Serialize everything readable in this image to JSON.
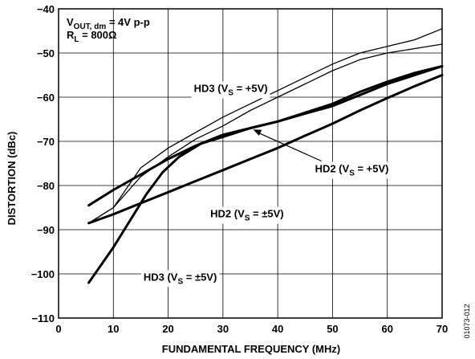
{
  "chart_data": {
    "type": "line",
    "xlabel": "FUNDAMENTAL FREQUENCY (MHz)",
    "ylabel": "DISTORTION (dBc)",
    "xlim": [
      0,
      70
    ],
    "ylim": [
      -110,
      -40
    ],
    "x_ticks": [
      "0",
      "10",
      "20",
      "30",
      "40",
      "50",
      "60",
      "70"
    ],
    "y_ticks": [
      "−40",
      "−50",
      "−60",
      "−70",
      "−80",
      "−90",
      "−100",
      "−110"
    ],
    "grid": true,
    "conditions": {
      "line1_main": "V",
      "line1_sub": "OUT, dm",
      "line1_rest": " = 4V p-p",
      "line2_main": "R",
      "line2_sub": "L",
      "line2_rest": " = 800Ω"
    },
    "series": [
      {
        "name": "HD3 (VS = +5V)",
        "weight": "thin",
        "points": [
          [
            5.5,
            -88.5
          ],
          [
            10,
            -85
          ],
          [
            15,
            -76
          ],
          [
            20,
            -71.5
          ],
          [
            25,
            -68
          ],
          [
            30,
            -64.5
          ],
          [
            35,
            -61.5
          ],
          [
            40,
            -58.5
          ],
          [
            45,
            -55.5
          ],
          [
            50,
            -52.5
          ],
          [
            55,
            -50
          ],
          [
            60,
            -48.5
          ],
          [
            65,
            -47
          ],
          [
            70,
            -44.5
          ]
        ]
      },
      {
        "name": "HD2 (VS = +5V)",
        "weight": "thin",
        "points": [
          [
            5.5,
            -88.5
          ],
          [
            10,
            -85
          ],
          [
            15,
            -78
          ],
          [
            20,
            -73.5
          ],
          [
            25,
            -69.5
          ],
          [
            30,
            -66.5
          ],
          [
            35,
            -63
          ],
          [
            40,
            -60
          ],
          [
            45,
            -57
          ],
          [
            50,
            -54
          ],
          [
            55,
            -51.5
          ],
          [
            60,
            -50
          ],
          [
            65,
            -49
          ],
          [
            70,
            -48
          ]
        ]
      },
      {
        "name": "HD2 (VS = +5V)",
        "weight": "thick",
        "points": [
          [
            5.5,
            -84.5
          ],
          [
            10,
            -81
          ],
          [
            15,
            -77.5
          ],
          [
            20,
            -74
          ],
          [
            25,
            -71
          ],
          [
            30,
            -68.5
          ],
          [
            35,
            -67
          ],
          [
            40,
            -65.5
          ],
          [
            45,
            -63.7
          ],
          [
            50,
            -62
          ],
          [
            55,
            -59.5
          ],
          [
            60,
            -57
          ],
          [
            65,
            -55
          ],
          [
            70,
            -53
          ]
        ]
      },
      {
        "name": "HD2 (VS = ±5V)",
        "weight": "thick",
        "points": [
          [
            5.5,
            -88.5
          ],
          [
            10,
            -86.5
          ],
          [
            15,
            -84
          ],
          [
            20,
            -81.5
          ],
          [
            25,
            -79
          ],
          [
            30,
            -76.5
          ],
          [
            35,
            -74
          ],
          [
            40,
            -71.5
          ],
          [
            45,
            -68.7
          ],
          [
            50,
            -66
          ],
          [
            55,
            -63
          ],
          [
            60,
            -60.2
          ],
          [
            65,
            -57.5
          ],
          [
            70,
            -55
          ]
        ]
      },
      {
        "name": "HD3 (VS = ±5V)",
        "weight": "thick",
        "points": [
          [
            5.5,
            -102
          ],
          [
            10,
            -94
          ],
          [
            13,
            -88
          ],
          [
            16,
            -82
          ],
          [
            19,
            -77
          ],
          [
            22,
            -73.5
          ],
          [
            26,
            -70.5
          ],
          [
            30,
            -69
          ],
          [
            35,
            -67
          ],
          [
            40,
            -65.5
          ],
          [
            45,
            -63.5
          ],
          [
            50,
            -61.5
          ],
          [
            55,
            -58.8
          ],
          [
            60,
            -56.5
          ],
          [
            65,
            -54.5
          ],
          [
            70,
            -53
          ]
        ]
      }
    ],
    "annotations": [
      {
        "id": "hd3_plus",
        "main": "HD3 (V",
        "sub": "S",
        "rest": " = +5V)",
        "x": 24.7,
        "y": -58.8
      },
      {
        "id": "hd2_plus",
        "main": "HD2 (V",
        "sub": "S",
        "rest": " = +5V)",
        "x": 46.8,
        "y": -77.0
      },
      {
        "id": "hd2_pm",
        "main": "HD2 (V",
        "sub": "S",
        "rest": " = ±5V)",
        "x": 27.7,
        "y": -87.2
      },
      {
        "id": "hd3_pm",
        "main": "HD3 (V",
        "sub": "S",
        "rest": " = ±5V)",
        "x": 15.5,
        "y": -101.5
      }
    ],
    "figure_id": "01073-012"
  }
}
